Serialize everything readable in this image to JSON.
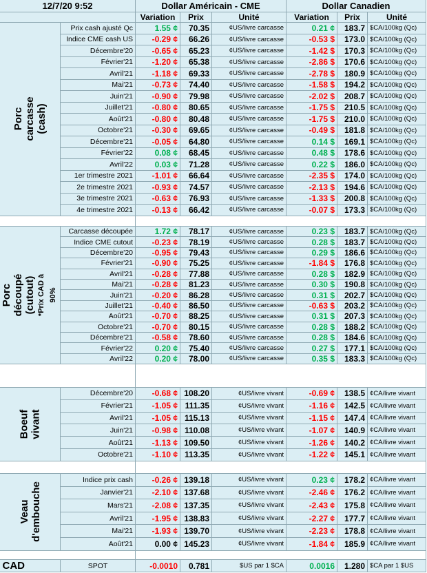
{
  "header": {
    "timestamp": "12/7/20 9:52",
    "usd_title": "Dollar Américain - CME",
    "cad_title": "Dollar Canadien",
    "columns": [
      "Variation",
      "Prix",
      "Unité",
      "Variation",
      "Prix",
      "Unité"
    ]
  },
  "sections": [
    {
      "label": "Porc carcasse (cash)",
      "usd_unit": "¢US/livre carcasse",
      "cad_unit": "$CA/100kg (Qc)",
      "rows": [
        [
          "Prix cash ajusté Qc",
          "1.55 ¢",
          "70.35",
          "0.21 ¢",
          "183.7"
        ],
        [
          "Indice CME cash US",
          "-0.29 ¢",
          "66.26",
          "-0.53 $",
          "173.0"
        ],
        [
          "Décembre'20",
          "-0.65 ¢",
          "65.23",
          "-1.42 $",
          "170.3"
        ],
        [
          "Février'21",
          "-1.20 ¢",
          "65.38",
          "-2.86 $",
          "170.6"
        ],
        [
          "Avril'21",
          "-1.18 ¢",
          "69.33",
          "-2.78 $",
          "180.9"
        ],
        [
          "Mai'21",
          "-0.73 ¢",
          "74.40",
          "-1.58 $",
          "194.2"
        ],
        [
          "Juin'21",
          "-0.90 ¢",
          "79.98",
          "-2.02 $",
          "208.7"
        ],
        [
          "Juillet'21",
          "-0.80 ¢",
          "80.65",
          "-1.75 $",
          "210.5"
        ],
        [
          "Août'21",
          "-0.80 ¢",
          "80.48",
          "-1.75 $",
          "210.0"
        ],
        [
          "Octobre'21",
          "-0.30 ¢",
          "69.65",
          "-0.49 $",
          "181.8"
        ],
        [
          "Décembre'21",
          "-0.05 ¢",
          "64.80",
          "0.14 $",
          "169.1"
        ],
        [
          "Février'22",
          "0.08 ¢",
          "68.45",
          "0.48 $",
          "178.6"
        ],
        [
          "Avril'22",
          "0.03 ¢",
          "71.28",
          "0.22 $",
          "186.0"
        ],
        [
          "1er trimestre 2021",
          "-1.01 ¢",
          "66.64",
          "-2.35 $",
          "174.0"
        ],
        [
          "2e trimestre 2021",
          "-0.93 ¢",
          "74.57",
          "-2.13 $",
          "194.6"
        ],
        [
          "3e trimestre 2021",
          "-0.63 ¢",
          "76.93",
          "-1.33 $",
          "200.8"
        ],
        [
          "4e trimestre 2021",
          "-0.13 ¢",
          "66.42",
          "-0.07 $",
          "173.3"
        ]
      ]
    },
    {
      "label": "Porc découpé (cutout)",
      "note": "*Prix CAD à 90%",
      "usd_unit": "¢US/livre carcasse",
      "cad_unit": "$CA/100kg (Qc)",
      "rows": [
        [
          "Carcasse découpée",
          "1.72 ¢",
          "78.17",
          "0.23 $",
          "183.7"
        ],
        [
          "Indice CME cutout",
          "-0.23 ¢",
          "78.19",
          "0.28 $",
          "183.7"
        ],
        [
          "Décembre'20",
          "-0.95 ¢",
          "79.43",
          "0.29 $",
          "186.6"
        ],
        [
          "Février'21",
          "-0.90 ¢",
          "75.25",
          "-1.84 $",
          "176.8"
        ],
        [
          "Avril'21",
          "-0.28 ¢",
          "77.88",
          "0.28 $",
          "182.9"
        ],
        [
          "Mai'21",
          "-0.28 ¢",
          "81.23",
          "0.30 $",
          "190.8"
        ],
        [
          "Juin'21",
          "-0.20 ¢",
          "86.28",
          "0.31 $",
          "202.7"
        ],
        [
          "Juillet'21",
          "-0.40 ¢",
          "86.50",
          "-0.63 $",
          "203.2"
        ],
        [
          "Août'21",
          "-0.70 ¢",
          "88.25",
          "0.31 $",
          "207.3"
        ],
        [
          "Octobre'21",
          "-0.70 ¢",
          "80.15",
          "0.28 $",
          "188.2"
        ],
        [
          "Décembre'21",
          "-0.58 ¢",
          "78.60",
          "0.28 $",
          "184.6"
        ],
        [
          "Février'22",
          "0.20 ¢",
          "75.40",
          "0.27 $",
          "177.1"
        ],
        [
          "Avril'22",
          "0.20 ¢",
          "78.00",
          "0.35 $",
          "183.3"
        ]
      ]
    },
    {
      "label": "Boeuf vivant",
      "usd_unit": "¢US/livre vivant",
      "cad_unit": "¢CA/livre vivant",
      "rows": [
        [
          "Décembre'20",
          "-0.68 ¢",
          "108.20",
          "-0.69 ¢",
          "138.5"
        ],
        [
          "Février'21",
          "-1.05 ¢",
          "111.35",
          "-1.16 ¢",
          "142.5"
        ],
        [
          "Avril'21",
          "-1.05 ¢",
          "115.13",
          "-1.15 ¢",
          "147.4"
        ],
        [
          "Juin'21",
          "-0.98 ¢",
          "110.08",
          "-1.07 ¢",
          "140.9"
        ],
        [
          "Août'21",
          "-1.13 ¢",
          "109.50",
          "-1.26 ¢",
          "140.2"
        ],
        [
          "Octobre'21",
          "-1.10 ¢",
          "113.35",
          "-1.22 ¢",
          "145.1"
        ]
      ]
    },
    {
      "label": "Veau d'embouche",
      "usd_unit": "¢US/livre vivant",
      "cad_unit": "¢CA/livre vivant",
      "rows": [
        [
          "Indice prix cash",
          "-0.26 ¢",
          "139.18",
          "0.23 ¢",
          "178.2"
        ],
        [
          "Janvier'21",
          "-2.10 ¢",
          "137.68",
          "-2.46 ¢",
          "176.2"
        ],
        [
          "Mars'21",
          "-2.08 ¢",
          "137.35",
          "-2.43 ¢",
          "175.8"
        ],
        [
          "Avril'21",
          "-1.95 ¢",
          "138.83",
          "-2.27 ¢",
          "177.7"
        ],
        [
          "Mai'21",
          "-1.93 ¢",
          "139.70",
          "-2.23 ¢",
          "178.8"
        ],
        [
          "Août'21",
          "0.00 ¢",
          "145.23",
          "-1.84 ¢",
          "185.9"
        ]
      ]
    },
    {
      "label": "CAD",
      "usd_unit": "$US par 1 $CA",
      "cad_unit": "$CA par 1 $US",
      "rows": [
        [
          "SPOT",
          "-0.0010",
          "0.781",
          "0.0016",
          "1.280"
        ]
      ]
    }
  ]
}
